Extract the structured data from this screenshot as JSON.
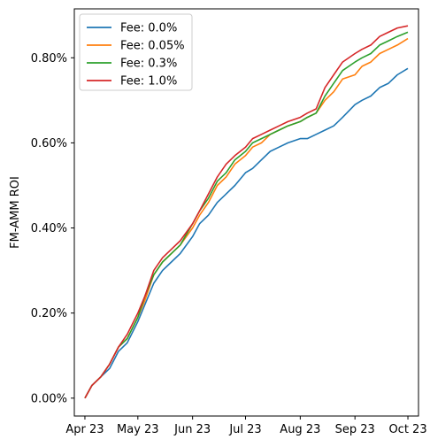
{
  "chart_data": {
    "type": "line",
    "ylabel": "FM-AMM ROI",
    "xlabel": "",
    "title": "",
    "xlim": [
      "2023-03-26",
      "2023-10-07"
    ],
    "ylim": [
      -0.00042,
      0.00915
    ],
    "x_ticks": [
      {
        "date": "2023-04-01",
        "label": "Apr 23"
      },
      {
        "date": "2023-05-01",
        "label": "May 23"
      },
      {
        "date": "2023-06-01",
        "label": "Jun 23"
      },
      {
        "date": "2023-07-01",
        "label": "Jul 23"
      },
      {
        "date": "2023-08-01",
        "label": "Aug 23"
      },
      {
        "date": "2023-09-01",
        "label": "Sep 23"
      },
      {
        "date": "2023-10-01",
        "label": "Oct 23"
      }
    ],
    "y_ticks": [
      {
        "value": 0.0,
        "label": "0.00%"
      },
      {
        "value": 0.002,
        "label": "0.20%"
      },
      {
        "value": 0.004,
        "label": "0.40%"
      },
      {
        "value": 0.006,
        "label": "0.60%"
      },
      {
        "value": 0.008,
        "label": "0.80%"
      }
    ],
    "legend_position": "top-left",
    "grid": false,
    "x": [
      "2023-04-01",
      "2023-04-05",
      "2023-04-10",
      "2023-04-15",
      "2023-04-20",
      "2023-04-25",
      "2023-05-01",
      "2023-05-05",
      "2023-05-10",
      "2023-05-15",
      "2023-05-20",
      "2023-05-25",
      "2023-06-01",
      "2023-06-05",
      "2023-06-10",
      "2023-06-15",
      "2023-06-20",
      "2023-06-25",
      "2023-07-01",
      "2023-07-05",
      "2023-07-10",
      "2023-07-15",
      "2023-07-20",
      "2023-07-25",
      "2023-08-01",
      "2023-08-05",
      "2023-08-10",
      "2023-08-15",
      "2023-08-20",
      "2023-08-25",
      "2023-09-01",
      "2023-09-05",
      "2023-09-10",
      "2023-09-15",
      "2023-09-20",
      "2023-09-25",
      "2023-10-01"
    ],
    "series": [
      {
        "name": "Fee: 0.0%",
        "color": "#1f77b4",
        "values": [
          0.0,
          0.0003,
          0.0005,
          0.0007,
          0.0011,
          0.0013,
          0.0018,
          0.0022,
          0.0027,
          0.003,
          0.0032,
          0.0034,
          0.0038,
          0.0041,
          0.0043,
          0.0046,
          0.0048,
          0.005,
          0.0053,
          0.0054,
          0.0056,
          0.0058,
          0.0059,
          0.006,
          0.0061,
          0.0061,
          0.0062,
          0.0063,
          0.0064,
          0.0066,
          0.0069,
          0.007,
          0.0071,
          0.0073,
          0.0074,
          0.0076,
          0.00775
        ]
      },
      {
        "name": "Fee: 0.05%",
        "color": "#ff7f0e",
        "values": [
          0.0,
          0.0003,
          0.0005,
          0.0008,
          0.0012,
          0.0014,
          0.0019,
          0.0023,
          0.0029,
          0.0032,
          0.0034,
          0.0036,
          0.004,
          0.0043,
          0.0046,
          0.005,
          0.0052,
          0.0055,
          0.0057,
          0.0059,
          0.006,
          0.0062,
          0.0063,
          0.0064,
          0.0065,
          0.0066,
          0.0067,
          0.007,
          0.0072,
          0.0075,
          0.0076,
          0.0078,
          0.0079,
          0.0081,
          0.0082,
          0.0083,
          0.00845
        ]
      },
      {
        "name": "Fee: 0.3%",
        "color": "#2ca02c",
        "values": [
          0.0,
          0.0003,
          0.0005,
          0.0008,
          0.0012,
          0.0014,
          0.0019,
          0.0024,
          0.0029,
          0.0032,
          0.0034,
          0.0036,
          0.0041,
          0.0044,
          0.0047,
          0.0051,
          0.0053,
          0.0056,
          0.0058,
          0.006,
          0.0061,
          0.0062,
          0.0063,
          0.0064,
          0.0065,
          0.0066,
          0.0067,
          0.0071,
          0.0074,
          0.0077,
          0.0079,
          0.008,
          0.0081,
          0.0083,
          0.0084,
          0.0085,
          0.0086
        ]
      },
      {
        "name": "Fee: 1.0%",
        "color": "#d62728",
        "values": [
          0.0,
          0.0003,
          0.0005,
          0.0008,
          0.0012,
          0.0015,
          0.002,
          0.0024,
          0.003,
          0.0033,
          0.0035,
          0.0037,
          0.0041,
          0.0044,
          0.0048,
          0.0052,
          0.0055,
          0.0057,
          0.0059,
          0.0061,
          0.0062,
          0.0063,
          0.0064,
          0.0065,
          0.0066,
          0.0067,
          0.0068,
          0.0073,
          0.0076,
          0.0079,
          0.0081,
          0.0082,
          0.0083,
          0.0085,
          0.0086,
          0.0087,
          0.00875
        ]
      }
    ]
  }
}
